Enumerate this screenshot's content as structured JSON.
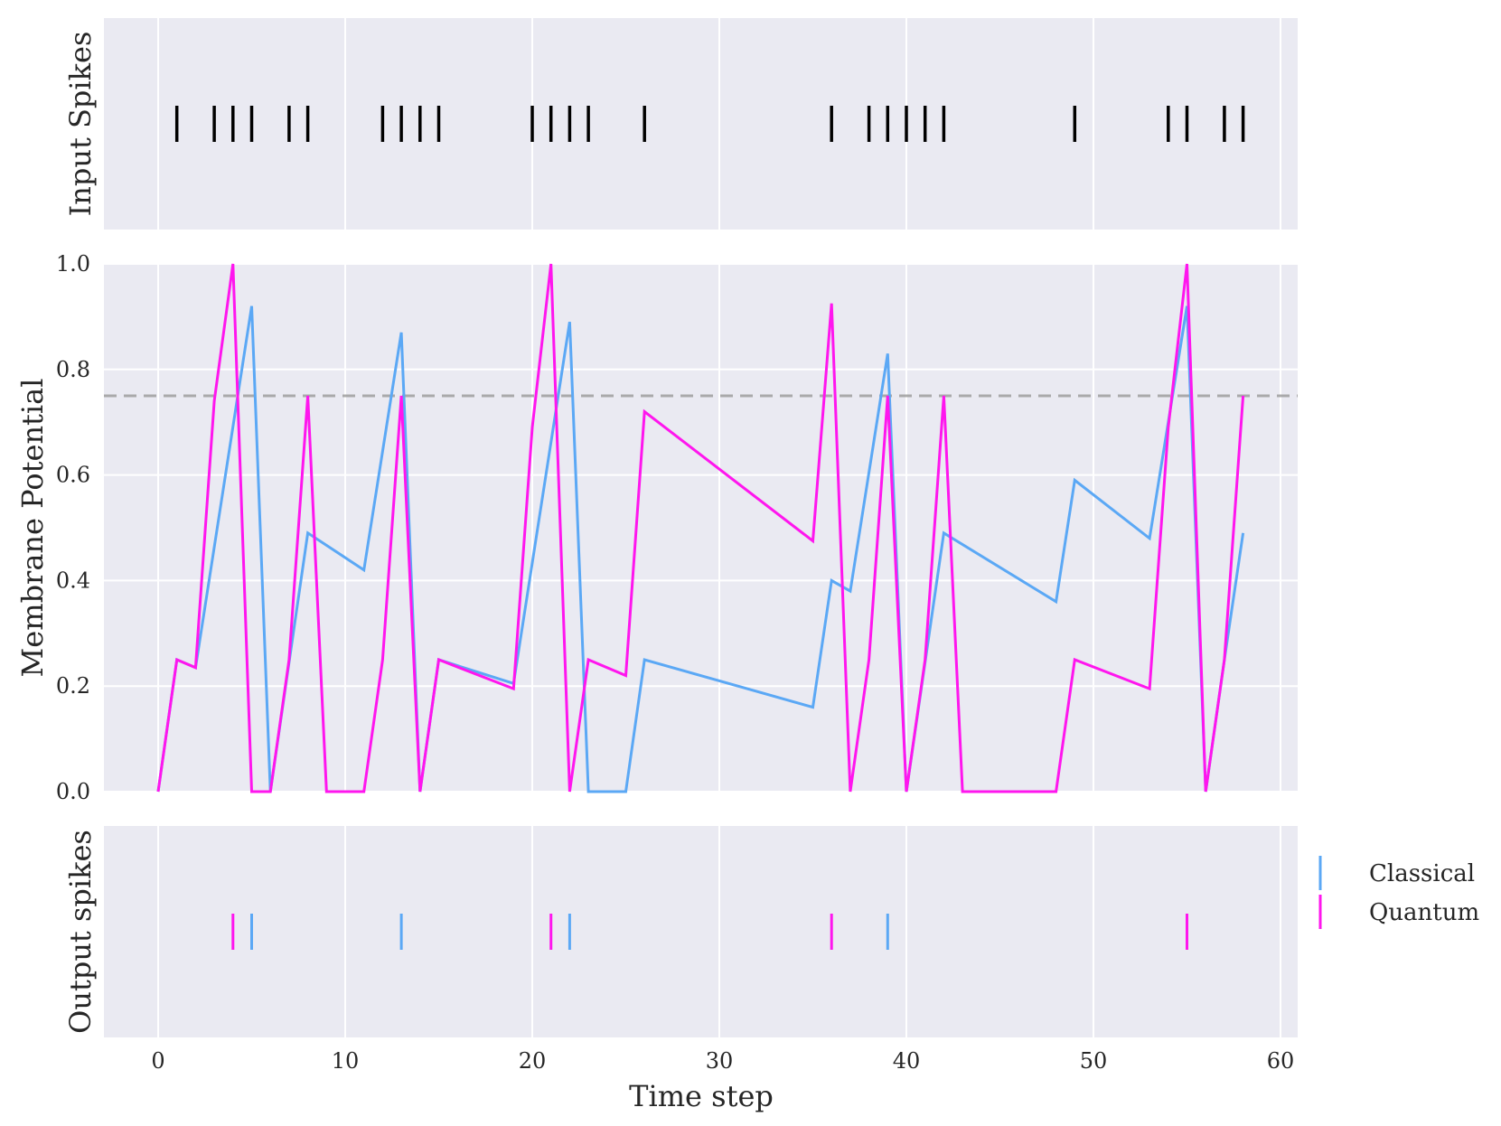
{
  "chart_data": {
    "type": "line",
    "xlabel": "Time step",
    "xlim": [
      -3,
      61
    ],
    "x_ticks": [
      0,
      10,
      20,
      30,
      40,
      50,
      60
    ],
    "threshold": 0.75,
    "panels": {
      "input": {
        "ylabel": "Input Spikes"
      },
      "membrane": {
        "ylabel": "Membrane Potential",
        "ylim": [
          0,
          1.0
        ],
        "y_ticks": [
          "0.0",
          "0.2",
          "0.4",
          "0.6",
          "0.8",
          "1.0"
        ]
      },
      "output": {
        "ylabel": "Output spikes"
      }
    },
    "input_spikes": [
      1,
      3,
      4,
      5,
      7,
      8,
      12,
      13,
      14,
      15,
      20,
      21,
      22,
      23,
      26,
      36,
      38,
      39,
      40,
      41,
      42,
      49,
      54,
      55,
      57,
      58
    ],
    "series": [
      {
        "name": "Classical",
        "color": "#5ba8f5",
        "x": [
          0,
          1,
          2,
          5,
          6,
          8,
          11,
          13,
          14,
          15,
          19,
          22,
          23,
          25,
          26,
          35,
          36,
          37,
          39,
          40,
          42,
          48,
          49,
          53,
          55,
          56,
          57,
          58
        ],
        "y": [
          0.0,
          0.25,
          0.235,
          0.92,
          0.0,
          0.49,
          0.42,
          0.87,
          0.0,
          0.25,
          0.205,
          0.89,
          0.0,
          0.0,
          0.25,
          0.16,
          0.4,
          0.38,
          0.83,
          0.0,
          0.49,
          0.36,
          0.59,
          0.48,
          0.92,
          0.0,
          0.25,
          0.49
        ],
        "output_spikes": [
          5,
          13,
          22,
          39
        ]
      },
      {
        "name": "Quantum",
        "color": "#ff16ee",
        "x": [
          0,
          1,
          2,
          3,
          4,
          5,
          6,
          7,
          8,
          9,
          11,
          12,
          13,
          14,
          15,
          19,
          20,
          21,
          22,
          23,
          25,
          26,
          35,
          36,
          37,
          38,
          39,
          40,
          41,
          42,
          43,
          48,
          49,
          53,
          54,
          55,
          56,
          57,
          58
        ],
        "y": [
          0.0,
          0.25,
          0.235,
          0.74,
          1.0,
          0.0,
          0.0,
          0.25,
          0.75,
          0.0,
          0.0,
          0.25,
          0.75,
          0.0,
          0.25,
          0.195,
          0.69,
          1.0,
          0.0,
          0.25,
          0.22,
          0.72,
          0.475,
          0.925,
          0.0,
          0.25,
          0.75,
          0.0,
          0.25,
          0.75,
          0.0,
          0.0,
          0.25,
          0.195,
          0.69,
          1.0,
          0.0,
          0.25,
          0.75
        ],
        "output_spikes": [
          4,
          21,
          36,
          55
        ]
      }
    ],
    "legend": {
      "placement": "right of bottom panel",
      "entries": [
        "Classical",
        "Quantum"
      ]
    }
  }
}
